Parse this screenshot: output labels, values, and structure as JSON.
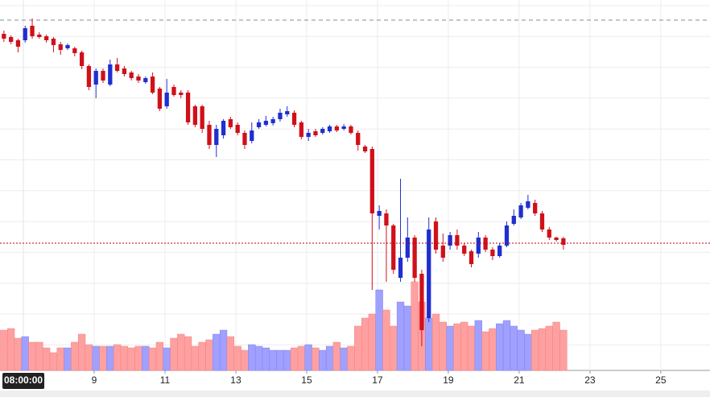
{
  "chart_data": {
    "type": "candlestick",
    "x": [
      6.45,
      6.65,
      6.85,
      7.05,
      7.25,
      7.45,
      7.65,
      7.85,
      8.05,
      8.25,
      8.45,
      8.65,
      8.85,
      9.05,
      9.25,
      9.45,
      9.65,
      9.85,
      10.05,
      10.25,
      10.45,
      10.65,
      10.85,
      11.05,
      11.25,
      11.45,
      11.65,
      11.85,
      12.05,
      12.25,
      12.45,
      12.65,
      12.85,
      13.05,
      13.25,
      13.45,
      13.65,
      13.85,
      14.05,
      14.25,
      14.45,
      14.65,
      14.85,
      15.05,
      15.25,
      15.45,
      15.65,
      15.85,
      16.05,
      16.25,
      16.45,
      16.65,
      16.85,
      17.05,
      17.25,
      17.45,
      17.65,
      17.85,
      18.05,
      18.25,
      18.45,
      18.65,
      18.85,
      19.05,
      19.25,
      19.45,
      19.65,
      19.85,
      20.05,
      20.25,
      20.45,
      20.65,
      20.85,
      21.05,
      21.25,
      21.45,
      21.65,
      21.85,
      22.05,
      22.25
    ],
    "open": [
      458,
      454,
      450,
      450,
      468,
      457,
      455,
      452,
      445,
      440,
      440,
      435,
      418,
      395,
      412,
      395,
      420,
      415,
      410,
      405,
      398,
      405,
      390,
      368,
      392,
      385,
      385,
      368,
      368,
      345,
      320,
      332,
      352,
      345,
      335,
      325,
      342,
      345,
      347,
      352,
      358,
      360,
      348,
      330,
      337,
      335,
      337,
      343,
      340,
      343,
      335,
      318,
      315,
      232,
      235,
      220,
      155,
      180,
      205,
      160,
      105,
      225,
      195,
      195,
      208,
      195,
      188,
      185,
      205,
      190,
      182,
      195,
      222,
      230,
      242,
      248,
      235,
      215,
      205,
      204
    ],
    "high": [
      462,
      456,
      452,
      468,
      477,
      460,
      457,
      454,
      448,
      446,
      442,
      437,
      420,
      415,
      415,
      426,
      428,
      418,
      412,
      408,
      405,
      410,
      392,
      402,
      395,
      388,
      388,
      370,
      370,
      350,
      345,
      352,
      355,
      348,
      338,
      348,
      352,
      356,
      355,
      365,
      368,
      363,
      350,
      340,
      340,
      342,
      345,
      345,
      346,
      345,
      338,
      320,
      318,
      245,
      240,
      222,
      278,
      230,
      208,
      165,
      230,
      230,
      210,
      212,
      215,
      198,
      190,
      212,
      208,
      193,
      198,
      225,
      240,
      248,
      258,
      252,
      238,
      218,
      206,
      206
    ],
    "low": [
      448,
      445,
      435,
      447,
      452,
      452,
      447,
      435,
      432,
      438,
      430,
      414,
      388,
      378,
      397,
      393,
      410,
      405,
      400,
      397,
      396,
      383,
      362,
      365,
      380,
      378,
      345,
      342,
      335,
      315,
      305,
      328,
      340,
      332,
      315,
      322,
      340,
      343,
      344,
      349,
      355,
      342,
      327,
      325,
      330,
      333,
      335,
      336,
      338,
      333,
      313,
      310,
      140,
      215,
      150,
      160,
      150,
      175,
      150,
      70,
      100,
      185,
      175,
      190,
      190,
      182,
      168,
      180,
      187,
      177,
      180,
      193,
      220,
      228,
      240,
      232,
      212,
      202,
      200,
      190
    ],
    "close": [
      452,
      448,
      442,
      465,
      455,
      454,
      450,
      444,
      438,
      444,
      434,
      418,
      392,
      412,
      400,
      420,
      412,
      408,
      403,
      400,
      403,
      385,
      365,
      385,
      382,
      382,
      348,
      345,
      340,
      320,
      340,
      350,
      342,
      335,
      320,
      338,
      348,
      350,
      352,
      360,
      362,
      345,
      330,
      335,
      332,
      340,
      343,
      338,
      343,
      335,
      320,
      312,
      235,
      238,
      220,
      165,
      180,
      205,
      155,
      90,
      215,
      190,
      180,
      208,
      195,
      185,
      172,
      205,
      190,
      182,
      195,
      220,
      232,
      245,
      250,
      235,
      215,
      205,
      202,
      196
    ],
    "volume": [
      50,
      52,
      40,
      42,
      35,
      35,
      28,
      22,
      28,
      28,
      35,
      45,
      32,
      30,
      30,
      30,
      32,
      30,
      28,
      30,
      30,
      28,
      35,
      28,
      40,
      45,
      42,
      30,
      35,
      38,
      45,
      50,
      42,
      30,
      25,
      32,
      30,
      28,
      25,
      25,
      25,
      28,
      30,
      32,
      28,
      25,
      30,
      35,
      28,
      30,
      55,
      65,
      70,
      100,
      75,
      55,
      85,
      80,
      110,
      85,
      65,
      70,
      60,
      55,
      58,
      60,
      55,
      62,
      48,
      52,
      58,
      62,
      55,
      50,
      45,
      50,
      52,
      55,
      60,
      50
    ],
    "up_color": "#1f2fd0",
    "down_color": "#d0101a",
    "up_volume_color": "#a0a0ff",
    "down_volume_color": "#ffa0a0",
    "xlim": [
      6.34,
      26.39
    ],
    "ylim": [
      40,
      500
    ],
    "volume_lim": [
      0,
      120
    ],
    "xticks": [
      9,
      11,
      13,
      15,
      17,
      19,
      21,
      23,
      25
    ],
    "crosshair": {
      "x": 7,
      "label": "08:00:00"
    },
    "last_price_line": 198,
    "dashed_line": 475,
    "grid": true
  }
}
